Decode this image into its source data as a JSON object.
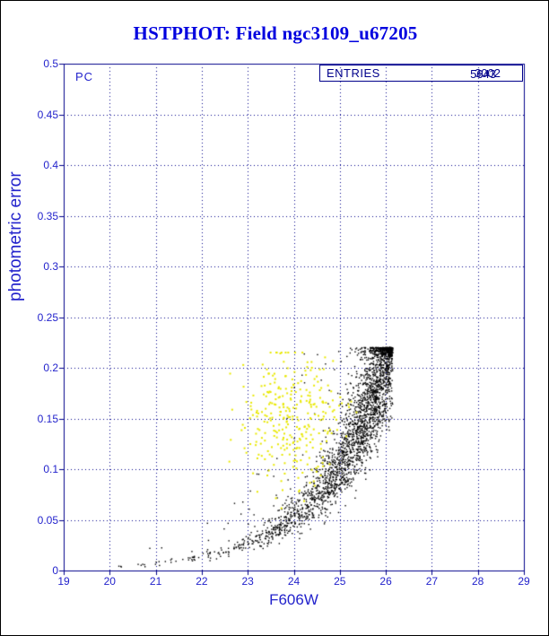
{
  "title": "HSTPHOT: Field ngc3109_u67205",
  "annotations": {
    "chip_label": "PC",
    "stats_label": "ENTRIES",
    "stats_value_front": "3002",
    "stats_value_back": "5643"
  },
  "colors": {
    "title_color": "#0000df",
    "label_color": "#2323cc",
    "frame_color": "#00008b",
    "black_points": "#000000",
    "yellow_points": "#e8e800",
    "page_border": "#000000",
    "background": "#ffffff"
  },
  "chart_data": {
    "type": "scatter",
    "title": "HSTPHOT: Field ngc3109_u67205",
    "xlabel": "F606W",
    "ylabel": "photometric error",
    "xlim": [
      19,
      29
    ],
    "ylim": [
      0,
      0.5
    ],
    "xticks": [
      19,
      20,
      21,
      22,
      23,
      24,
      25,
      26,
      27,
      28,
      29
    ],
    "xtick_labels": [
      "19",
      "20",
      "21",
      "22",
      "23",
      "24",
      "25",
      "26",
      "27",
      "28",
      "29"
    ],
    "yticks": [
      0,
      0.05,
      0.1,
      0.15,
      0.2,
      0.25,
      0.3,
      0.35,
      0.4,
      0.45,
      0.5
    ],
    "ytick_labels": [
      "0",
      "0.05",
      "0.1",
      "0.15",
      "0.2",
      "0.25",
      "0.3",
      "0.35",
      "0.4",
      "0.45",
      "0.5"
    ],
    "grid": true,
    "grid_style": "dashed",
    "legend": null,
    "annotations": [
      "PC",
      "ENTRIES stats box with overprinted counts 3002 / 5643"
    ],
    "seed": 1712,
    "series": [
      {
        "name": "PC chip stars (black): photometric error vs magnitude locus, error rises exponentially to ~0.22 cap at F606W ~26.1",
        "color": "#000000",
        "n": 2600,
        "marker_px": 1.4,
        "model": {
          "kind": "error-magnitude-locus",
          "x_range": [
            20.0,
            26.15
          ],
          "x_weight_exp": 1.0,
          "base": {
            "a": 0.0035,
            "b": 0.68,
            "x0": 20
          },
          "lognorm_sigma": 0.18,
          "outlier_frac": 0.07,
          "outlier_mult_max": 3.5,
          "err_cap": 0.22,
          "err_min": 0.003,
          "cap_pile_x_min": 25.2
        }
      },
      {
        "name": "flagged stars (yellow): cloud centered near F606W 24.0, error 0.15",
        "color": "#e8e800",
        "n": 300,
        "marker_px": 2,
        "model": {
          "kind": "gaussian-cloud",
          "cx": 23.95,
          "cy": 0.15,
          "sx": 0.55,
          "sy": 0.035,
          "x_min": 22.6,
          "x_max": 25.6,
          "err_min": 0.055,
          "err_cap": 0.215
        }
      }
    ]
  }
}
